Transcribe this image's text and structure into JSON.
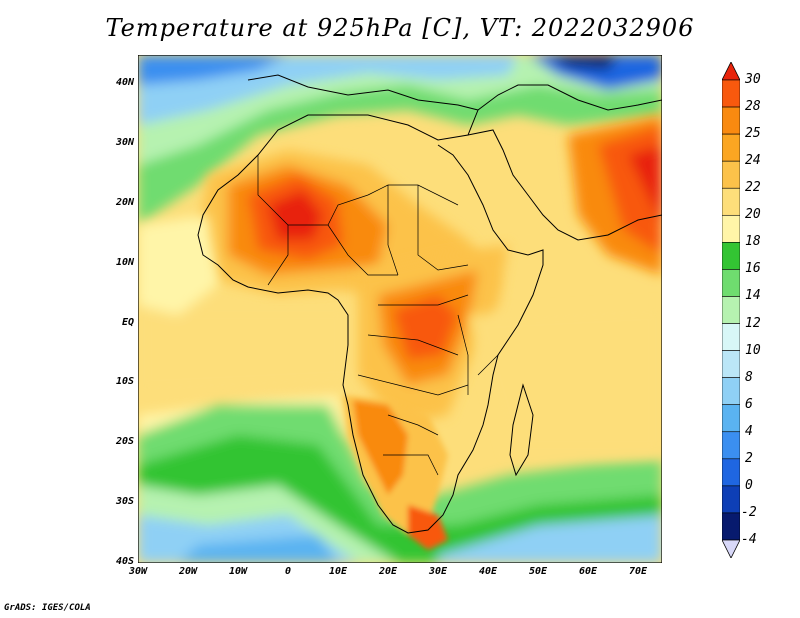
{
  "title": "Temperature at 925hPa [C], VT: 2022032906",
  "credit": "GrADS: IGES/COLA",
  "lat_ticks": [
    "40N",
    "30N",
    "20N",
    "10N",
    "EQ",
    "10S",
    "20S",
    "30S",
    "40S"
  ],
  "lon_ticks": [
    "30W",
    "20W",
    "10W",
    "0",
    "10E",
    "20E",
    "30E",
    "40E",
    "50E",
    "60E",
    "70E"
  ],
  "colorbar": {
    "labels": [
      "30",
      "28",
      "25",
      "24",
      "22",
      "20",
      "18",
      "16",
      "14",
      "12",
      "10",
      "8",
      "6",
      "4",
      "2",
      "0",
      "-2",
      "-4"
    ],
    "colors": [
      "#e8240c",
      "#f8590e",
      "#f98a10",
      "#fba622",
      "#fcc24a",
      "#fdde7a",
      "#fff5a8",
      "#33c433",
      "#6fdc6f",
      "#b6f2b0",
      "#d8f7f7",
      "#bbe6f7",
      "#8fd0f5",
      "#5ab3f1",
      "#3b8ff0",
      "#1f66e1",
      "#0e3fb6",
      "#071a6e",
      "#d8d8f8"
    ]
  },
  "map": {
    "projection": "equirectangular",
    "lon_range": [
      -30,
      75
    ],
    "lat_range": [
      -40,
      45
    ],
    "variable": "Temperature at 925hPa",
    "units": "C"
  }
}
